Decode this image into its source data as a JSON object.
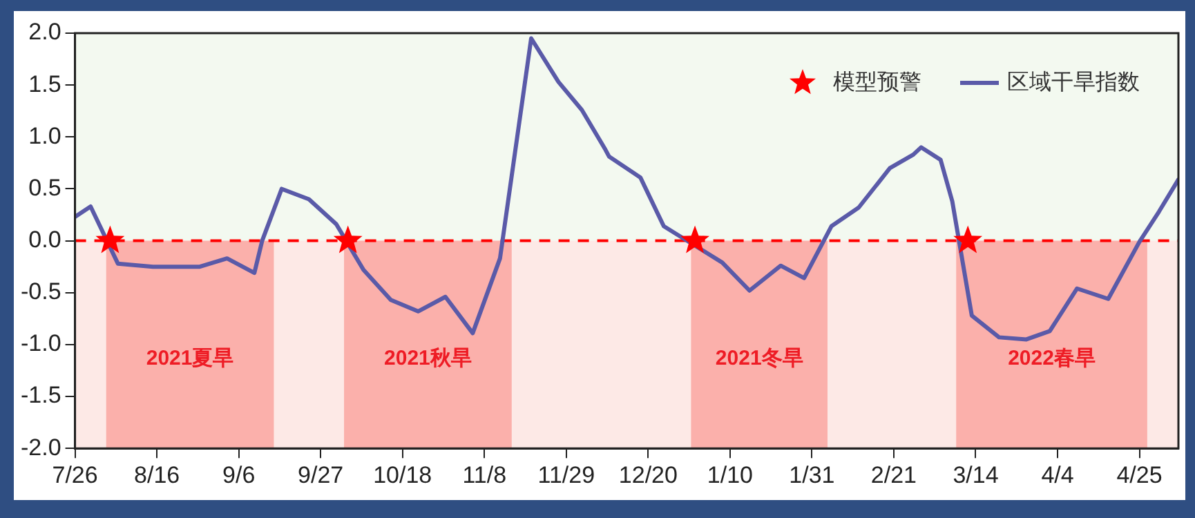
{
  "chart_data": {
    "type": "line",
    "x": [
      "2021-07-26",
      "2021-07-30",
      "2021-08-06",
      "2021-08-15",
      "2021-08-27",
      "2021-09-03",
      "2021-09-10",
      "2021-09-12",
      "2021-09-17",
      "2021-09-24",
      "2021-10-01",
      "2021-10-08",
      "2021-10-15",
      "2021-10-22",
      "2021-10-29",
      "2021-11-05",
      "2021-11-12",
      "2021-11-20",
      "2021-11-27",
      "2021-12-03",
      "2021-12-09",
      "2021-12-10",
      "2021-12-18",
      "2021-12-24",
      "2022-01-08",
      "2022-01-15",
      "2022-01-23",
      "2022-01-29",
      "2022-02-05",
      "2022-02-12",
      "2022-02-20",
      "2022-02-26",
      "2022-02-28",
      "2022-03-05",
      "2022-03-08",
      "2022-03-13",
      "2022-03-20",
      "2022-03-27",
      "2022-04-02",
      "2022-04-09",
      "2022-04-17",
      "2022-04-25",
      "2022-04-30",
      "2022-05-05"
    ],
    "series": [
      {
        "name": "区域干旱指数",
        "color": "#5a5aa8",
        "marker": "none",
        "values": [
          0.23,
          0.33,
          -0.22,
          -0.25,
          -0.25,
          -0.17,
          -0.31,
          0,
          0.5,
          0.4,
          0.16,
          -0.28,
          -0.57,
          -0.68,
          -0.54,
          -0.89,
          -0.17,
          1.95,
          1.53,
          1.26,
          0.88,
          0.81,
          0.61,
          0.14,
          -0.21,
          -0.48,
          -0.24,
          -0.36,
          0.14,
          0.32,
          0.7,
          0.83,
          0.9,
          0.78,
          0.38,
          -0.72,
          -0.93,
          -0.95,
          -0.87,
          -0.46,
          -0.56,
          -0.01,
          0.28,
          0.59
        ]
      },
      {
        "name": "模型预警",
        "type": "scatter",
        "color": "#ff0000",
        "marker": "star",
        "x": [
          "2021-08-04",
          "2021-10-04",
          "2022-01-01",
          "2022-03-12"
        ],
        "values": [
          0,
          0,
          0,
          0
        ]
      }
    ],
    "xlim": [
      "2021-07-26",
      "2022-05-05"
    ],
    "xticks": [
      {
        "value": "2021-07-26",
        "label": "7/26"
      },
      {
        "value": "2021-08-16",
        "label": "8/16"
      },
      {
        "value": "2021-09-06",
        "label": "9/6"
      },
      {
        "value": "2021-09-27",
        "label": "9/27"
      },
      {
        "value": "2021-10-18",
        "label": "10/18"
      },
      {
        "value": "2021-11-08",
        "label": "11/8"
      },
      {
        "value": "2021-11-29",
        "label": "11/29"
      },
      {
        "value": "2021-12-20",
        "label": "12/20"
      },
      {
        "value": "2022-01-10",
        "label": "1/10"
      },
      {
        "value": "2022-01-31",
        "label": "1/31"
      },
      {
        "value": "2022-02-21",
        "label": "2/21"
      },
      {
        "value": "2022-03-14",
        "label": "3/14"
      },
      {
        "value": "2022-04-04",
        "label": "4/4"
      },
      {
        "value": "2022-04-25",
        "label": "4/25"
      }
    ],
    "ylim": [
      -2,
      2
    ],
    "yticks": [
      {
        "value": -2,
        "label": "-2.0"
      },
      {
        "value": -1.5,
        "label": "-1.5"
      },
      {
        "value": -1,
        "label": "-1.0"
      },
      {
        "value": -0.5,
        "label": "-0.5"
      },
      {
        "value": 0,
        "label": "0.0"
      },
      {
        "value": 0.5,
        "label": "0.5"
      },
      {
        "value": 1,
        "label": "1.0"
      },
      {
        "value": 1.5,
        "label": "1.5"
      },
      {
        "value": 2,
        "label": "2.0"
      }
    ],
    "ref_lines": [
      {
        "axis": "y",
        "value": 0,
        "color": "#ff0000",
        "line_style": "dashed"
      }
    ],
    "bands": [
      {
        "axis": "y",
        "from": 0,
        "to": 2,
        "color": "#f3f9f0"
      },
      {
        "axis": "y",
        "from": -2,
        "to": 0,
        "color": "#fde9e6"
      },
      {
        "axis": "x",
        "from": "2021-08-03",
        "to": "2021-09-15",
        "label": "2021夏旱",
        "color": "#fbb0ab"
      },
      {
        "axis": "x",
        "from": "2021-10-03",
        "to": "2021-11-15",
        "label": "2021秋旱",
        "color": "#fbb0ab"
      },
      {
        "axis": "x",
        "from": "2021-12-31",
        "to": "2022-02-04",
        "label": "2021冬旱",
        "color": "#fbb0ab"
      },
      {
        "axis": "x",
        "from": "2022-03-09",
        "to": "2022-04-27",
        "label": "2022春旱",
        "color": "#fbb0ab"
      }
    ],
    "grid": false,
    "legend": "top right",
    "line_style": "solid"
  }
}
